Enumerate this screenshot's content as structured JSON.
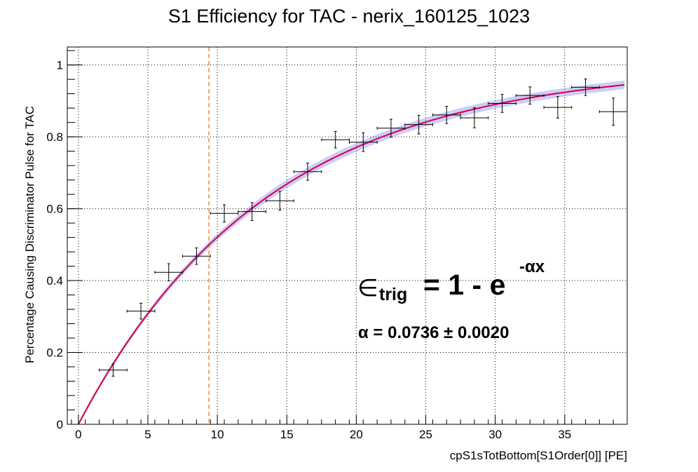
{
  "chart_data": {
    "type": "scatter",
    "title": "S1 Efficiency for TAC - nerix_160125_1023",
    "xlabel": "cpS1sTotBottom[S1Order[0]] [PE]",
    "ylabel": "Percentage Causing Discriminator Pulse for TAC",
    "xlim": [
      -0.8,
      39.5
    ],
    "ylim": [
      0,
      1.05
    ],
    "x_ticks": [
      0,
      5,
      10,
      15,
      20,
      25,
      30,
      35
    ],
    "y_ticks": [
      0,
      0.2,
      0.4,
      0.6,
      0.8,
      1
    ],
    "x_tick_labels": [
      "0",
      "5",
      "10",
      "15",
      "20",
      "25",
      "30",
      "35"
    ],
    "y_tick_labels": [
      "0",
      "0.2",
      "0.4",
      "0.6",
      "0.8",
      "1"
    ],
    "grid": true,
    "threshold_line_x": 9.4,
    "series": [
      {
        "points": [
          {
            "x": 2.5,
            "y": 0.151,
            "xerr": 1.0,
            "yerr": 0.017
          },
          {
            "x": 4.5,
            "y": 0.315,
            "xerr": 1.0,
            "yerr": 0.022
          },
          {
            "x": 6.5,
            "y": 0.423,
            "xerr": 1.0,
            "yerr": 0.024
          },
          {
            "x": 8.5,
            "y": 0.468,
            "xerr": 1.0,
            "yerr": 0.023
          },
          {
            "x": 10.5,
            "y": 0.587,
            "xerr": 1.0,
            "yerr": 0.024
          },
          {
            "x": 12.5,
            "y": 0.592,
            "xerr": 1.0,
            "yerr": 0.025
          },
          {
            "x": 14.5,
            "y": 0.622,
            "xerr": 1.0,
            "yerr": 0.026
          },
          {
            "x": 16.5,
            "y": 0.703,
            "xerr": 1.0,
            "yerr": 0.024
          },
          {
            "x": 18.5,
            "y": 0.792,
            "xerr": 1.0,
            "yerr": 0.023
          },
          {
            "x": 20.5,
            "y": 0.785,
            "xerr": 1.0,
            "yerr": 0.026
          },
          {
            "x": 22.5,
            "y": 0.824,
            "xerr": 1.0,
            "yerr": 0.025
          },
          {
            "x": 24.5,
            "y": 0.834,
            "xerr": 1.0,
            "yerr": 0.026
          },
          {
            "x": 26.5,
            "y": 0.861,
            "xerr": 1.0,
            "yerr": 0.024
          },
          {
            "x": 28.5,
            "y": 0.853,
            "xerr": 1.0,
            "yerr": 0.028
          },
          {
            "x": 30.5,
            "y": 0.893,
            "xerr": 1.0,
            "yerr": 0.025
          },
          {
            "x": 32.5,
            "y": 0.915,
            "xerr": 1.0,
            "yerr": 0.024
          },
          {
            "x": 34.5,
            "y": 0.882,
            "xerr": 1.0,
            "yerr": 0.03
          },
          {
            "x": 36.5,
            "y": 0.938,
            "xerr": 1.0,
            "yerr": 0.023
          },
          {
            "x": 38.5,
            "y": 0.87,
            "xerr": 1.0,
            "yerr": 0.038
          }
        ]
      }
    ],
    "fit": {
      "x_start": 0.15,
      "x_end": 39.3,
      "alpha": 0.0736,
      "alpha_err": 0.002,
      "band_half_width": 0.012
    },
    "annotation": {
      "epsilon_symbol": "∈",
      "subscript": "trig",
      "equation_main": "= 1 - e",
      "exponent": "-αx",
      "alpha_line": "α = 0.0736 ± 0.0020"
    },
    "colors": {
      "data": "#000000",
      "fit_line": "#d4004a",
      "fit_band": "#6f6fe8",
      "threshold_line": "#f5a25d",
      "grid": "#000000"
    }
  }
}
